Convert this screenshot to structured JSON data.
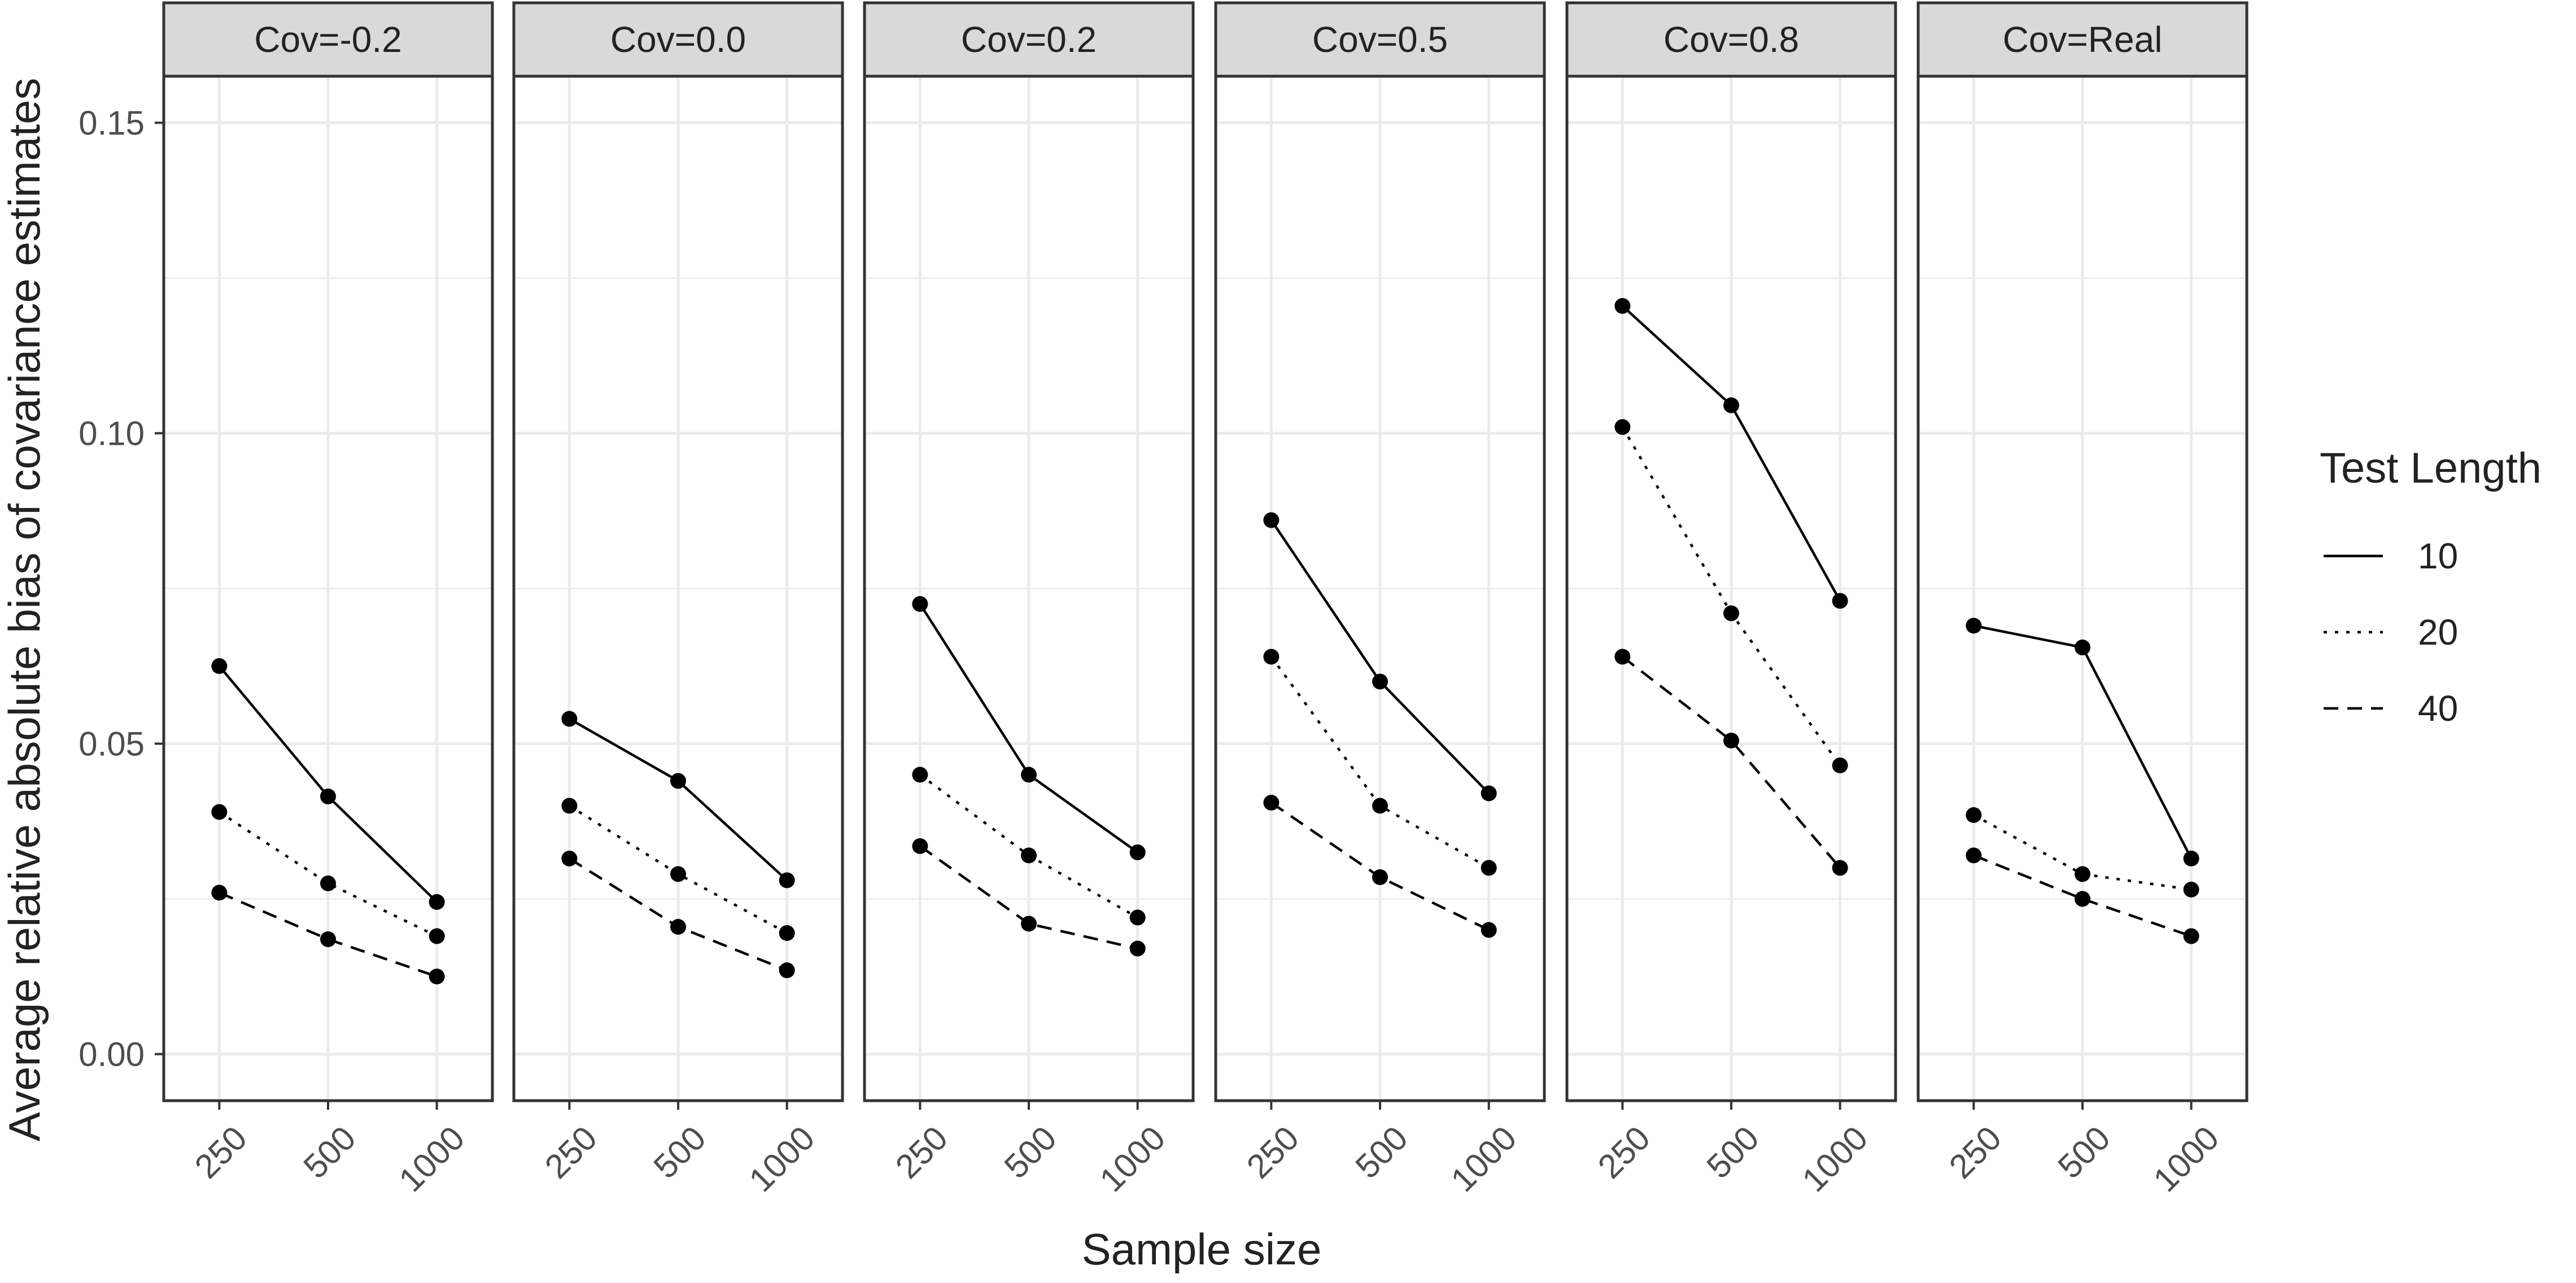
{
  "chart_data": {
    "type": "line",
    "facet_by": "Cov",
    "facets": [
      {
        "label": "Cov=-0.2",
        "series": [
          {
            "name": "10",
            "values": [
              0.0625,
              0.0415,
              0.0245
            ]
          },
          {
            "name": "20",
            "values": [
              0.039,
              0.0275,
              0.019
            ]
          },
          {
            "name": "40",
            "values": [
              0.026,
              0.0185,
              0.0125
            ]
          }
        ]
      },
      {
        "label": "Cov=0.0",
        "series": [
          {
            "name": "10",
            "values": [
              0.054,
              0.044,
              0.028
            ]
          },
          {
            "name": "20",
            "values": [
              0.04,
              0.029,
              0.0195
            ]
          },
          {
            "name": "40",
            "values": [
              0.0315,
              0.0205,
              0.0135
            ]
          }
        ]
      },
      {
        "label": "Cov=0.2",
        "series": [
          {
            "name": "10",
            "values": [
              0.0725,
              0.045,
              0.0325
            ]
          },
          {
            "name": "20",
            "values": [
              0.045,
              0.032,
              0.022
            ]
          },
          {
            "name": "40",
            "values": [
              0.0335,
              0.021,
              0.017
            ]
          }
        ]
      },
      {
        "label": "Cov=0.5",
        "series": [
          {
            "name": "10",
            "values": [
              0.086,
              0.06,
              0.042
            ]
          },
          {
            "name": "20",
            "values": [
              0.064,
              0.04,
              0.03
            ]
          },
          {
            "name": "40",
            "values": [
              0.0405,
              0.0285,
              0.02
            ]
          }
        ]
      },
      {
        "label": "Cov=0.8",
        "series": [
          {
            "name": "10",
            "values": [
              0.1205,
              0.1045,
              0.073
            ]
          },
          {
            "name": "20",
            "values": [
              0.101,
              0.071,
              0.0465
            ]
          },
          {
            "name": "40",
            "values": [
              0.064,
              0.0505,
              0.03
            ]
          }
        ]
      },
      {
        "label": "Cov=Real",
        "series": [
          {
            "name": "10",
            "values": [
              0.069,
              0.0655,
              0.0315
            ]
          },
          {
            "name": "20",
            "values": [
              0.0385,
              0.029,
              0.0265
            ]
          },
          {
            "name": "40",
            "values": [
              0.032,
              0.025,
              0.019
            ]
          }
        ]
      }
    ],
    "categories": [
      "250",
      "500",
      "1000"
    ],
    "y_ticks": [
      "0.00",
      "0.05",
      "0.10",
      "0.15"
    ],
    "y_tick_values": [
      0.0,
      0.05,
      0.1,
      0.15
    ],
    "ylim": [
      -0.0075,
      0.1575
    ],
    "xlabel": "Sample size",
    "ylabel": "Average relative absolute bias of covariance estimates",
    "legend": {
      "title": "Test Length",
      "position": "right",
      "entries": [
        {
          "label": "10",
          "linetype": "solid"
        },
        {
          "label": "20",
          "linetype": "dotted"
        },
        {
          "label": "40",
          "linetype": "dashed"
        }
      ]
    },
    "grid": true,
    "colors": {
      "line": "#000000",
      "strip_fill": "#d9d9d9",
      "grid": "#ebebeb",
      "panel_border": "#333333"
    }
  }
}
